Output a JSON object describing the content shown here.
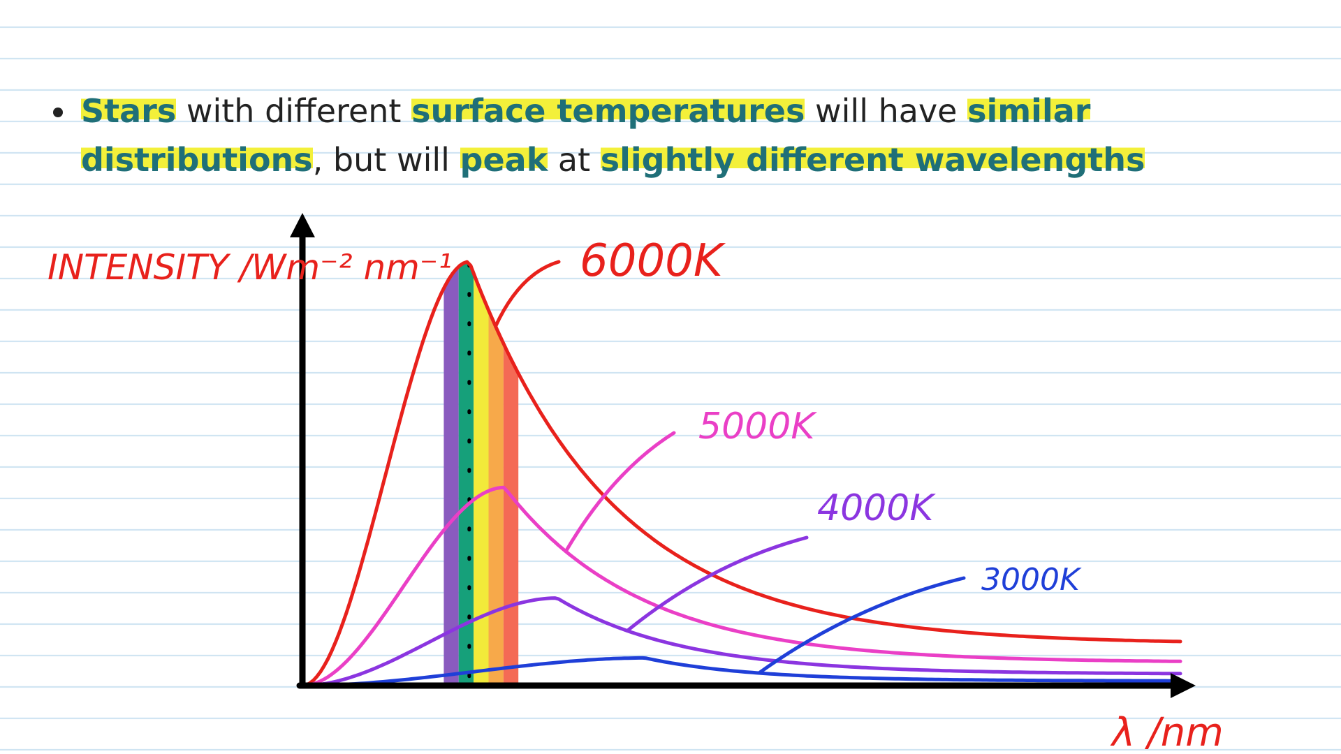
{
  "bullet": {
    "parts": [
      {
        "text": "Stars",
        "emphasis": true
      },
      {
        "text": " with different ",
        "emphasis": false
      },
      {
        "text": "surface temperatures",
        "emphasis": true
      },
      {
        "text": " will have ",
        "emphasis": false
      },
      {
        "text": "similar distributions",
        "emphasis": true
      },
      {
        "text": ", but will ",
        "emphasis": false
      },
      {
        "text": "peak",
        "emphasis": true
      },
      {
        "text": " at ",
        "emphasis": false
      },
      {
        "text": "slightly different wavelengths",
        "emphasis": true
      }
    ]
  },
  "colors": {
    "emphasis_text": "#1f6f78",
    "highlight": "#f3f03a",
    "annotation_red": "#e8211c"
  },
  "chart_data": {
    "type": "line",
    "ylabel": "INTENSITY /Wm⁻² nm⁻¹",
    "xlabel": "λ /nm",
    "grid": false,
    "xlim": [
      0,
      100
    ],
    "ylim": [
      0,
      100
    ],
    "visible_band": {
      "stripes": [
        "#8a5bbf",
        "#16a07a",
        "#f2ea3a",
        "#f7a94a",
        "#f46a55"
      ],
      "x_start": 16.1,
      "x_end": 24.6,
      "peak_marker_x": 19.0
    },
    "series": [
      {
        "name": "6000K",
        "color": "#e8211c",
        "peak_x": 19.0,
        "peak_y": 92,
        "end_y": 9
      },
      {
        "name": "5000K",
        "color": "#ea3fc6",
        "peak_x": 23.0,
        "peak_y": 43,
        "end_y": 5
      },
      {
        "name": "4000K",
        "color": "#8b35e0",
        "peak_x": 29.0,
        "peak_y": 19,
        "end_y": 2.5
      },
      {
        "name": "3000K",
        "color": "#1f3fd8",
        "peak_x": 39.0,
        "peak_y": 6,
        "end_y": 1
      }
    ]
  }
}
